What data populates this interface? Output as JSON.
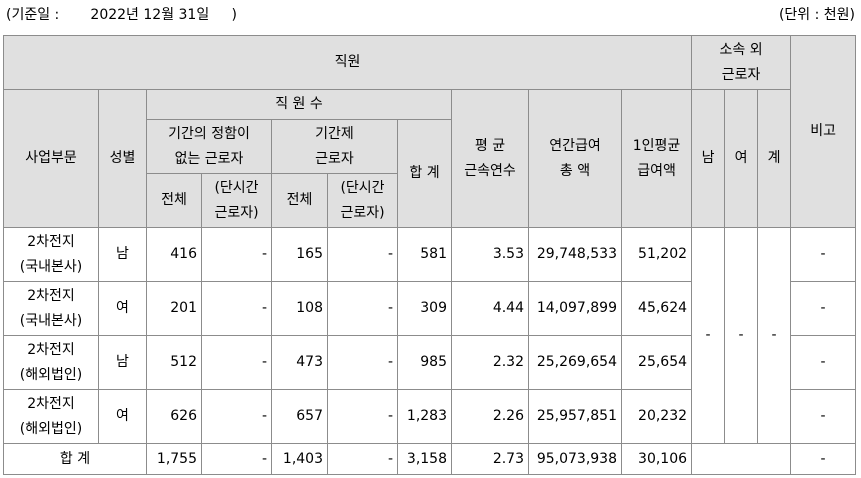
{
  "ref_date": "(기준일 :       2022년 12월 31일     )",
  "unit": "(단위 : 천원)",
  "headers": {
    "employees": "직원",
    "outside": "소속 외\n근로자",
    "note": "비고",
    "dept": "사업부문",
    "gender": "성별",
    "count": "직 원 수",
    "indefinite": "기간의 정함이\n없는 근로자",
    "fixed": "기간제\n근로자",
    "total": "합 계",
    "tenure": "평 균\n근속연수",
    "annual_pay": "연간급여\n총 액",
    "per_capita": "1인평균\n급여액",
    "male": "남",
    "female": "여",
    "sum": "계",
    "all": "전체",
    "part_time": "(단시간\n근로자)",
    "all2": "전체",
    "part_time2": "(단시간\n근로자)"
  },
  "rows": [
    {
      "dept": "2차전지\n(국내본사)",
      "gender": "남",
      "ind_all": "416",
      "ind_pt": "-",
      "fix_all": "165",
      "fix_pt": "-",
      "total": "581",
      "tenure": "3.53",
      "pay": "29,748,533",
      "avg": "51,202",
      "note": "-"
    },
    {
      "dept": "2차전지\n(국내본사)",
      "gender": "여",
      "ind_all": "201",
      "ind_pt": "-",
      "fix_all": "108",
      "fix_pt": "-",
      "total": "309",
      "tenure": "4.44",
      "pay": "14,097,899",
      "avg": "45,624",
      "note": "-"
    },
    {
      "dept": "2차전지\n(해외법인)",
      "gender": "남",
      "ind_all": "512",
      "ind_pt": "-",
      "fix_all": "473",
      "fix_pt": "-",
      "total": "985",
      "tenure": "2.32",
      "pay": "25,269,654",
      "avg": "25,654",
      "note": "-"
    },
    {
      "dept": "2차전지\n(해외법인)",
      "gender": "여",
      "ind_all": "626",
      "ind_pt": "-",
      "fix_all": "657",
      "fix_pt": "-",
      "total": "1,283",
      "tenure": "2.26",
      "pay": "25,957,851",
      "avg": "20,232",
      "note": "-"
    }
  ],
  "outside_values": {
    "male": "-",
    "female": "-",
    "sum": "-"
  },
  "total_row": {
    "label": "합 계",
    "ind_all": "1,755",
    "ind_pt": "-",
    "fix_all": "1,403",
    "fix_pt": "-",
    "total": "3,158",
    "tenure": "2.73",
    "pay": "95,073,938",
    "avg": "30,106",
    "note": "-"
  }
}
